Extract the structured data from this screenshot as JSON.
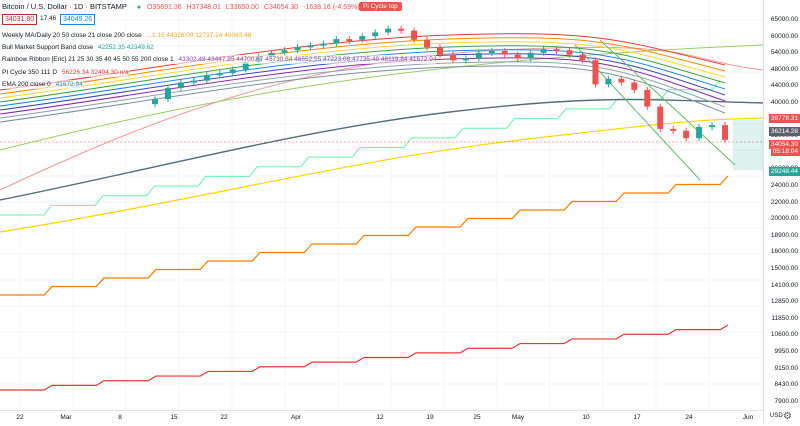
{
  "header": {
    "symbol": "Bitcoin / U.S. Dollar · 1D · BITSTAMP",
    "open": "O35691.36",
    "high": "H37348.01",
    "low": "L33650.00",
    "close": "C34054.30",
    "change": "-1638.16 (-4.59%)"
  },
  "price_boxes": {
    "bid": "34031.80",
    "spread": "17.46",
    "ask": "34049.26"
  },
  "pi_cycle_label": "Pi Cycle top",
  "indicators": [
    {
      "name": "Weekly MA/Daily 20 50 close 21 close 200 close",
      "values": "...1.15  44326.09  12737.24  40063.48"
    },
    {
      "name": "Bull Market Support Band close",
      "values": "42252.35  42349.62"
    },
    {
      "name": "Rainbow Ribbon [Eric] 21 25 30 35 40 45 50 55 200 close 1",
      "values": "43302.48  43447.85  44700.67  45730.64  46552.55  47223.08  47735.49  48119.84  41672.94"
    },
    {
      "name": "PI Cycle 350 111 D",
      "values": "56226.34  32404.30  n/a"
    },
    {
      "name": "EMA 200 close 0",
      "values": "41672.94"
    }
  ],
  "y_axis": {
    "labels": [
      "65000.00",
      "60000.00",
      "54000.00",
      "48000.00",
      "44000.00",
      "40000.00",
      "36000.00",
      "32000.00",
      "29000.00",
      "26000.00",
      "24000.00",
      "22000.00",
      "20000.00",
      "18900.00",
      "16000.00",
      "15000.00",
      "14100.00",
      "12850.00",
      "11850.00",
      "10600.00",
      "9950.00",
      "9150.00",
      "8430.00",
      "7900.00"
    ],
    "tags": [
      {
        "text": "38778.31",
        "color": "#ef5350"
      },
      {
        "text": "36214.28",
        "color": "#5d606b"
      },
      {
        "text": "34054.30",
        "color": "#ef5350"
      },
      {
        "text": "05:18:04",
        "color": "#ef5350"
      },
      {
        "text": "29248.44",
        "color": "#26a69a"
      }
    ],
    "currency": "USD"
  },
  "x_axis": {
    "labels": [
      "22",
      "Mar",
      "8",
      "15",
      "22",
      "Apr",
      "12",
      "19",
      "25",
      "May",
      "10",
      "17",
      "24",
      "Jun"
    ]
  },
  "colors": {
    "up": "#26a69a",
    "down": "#ef5350"
  },
  "chart_data": {
    "type": "line",
    "title": "Bitcoin / U.S. Dollar · 1D · BITSTAMP",
    "xlabel": "",
    "ylabel": "",
    "candles_close": [
      45000,
      48000,
      49500,
      50000,
      51500,
      52000,
      53000,
      55000,
      56500,
      57500,
      58200,
      59000,
      59500,
      60000,
      61200,
      61000,
      62000,
      63000,
      64000,
      63500,
      61000,
      59000,
      57000,
      55500,
      56000,
      57500,
      58000,
      57000,
      56000,
      57500,
      58500,
      58200,
      57000,
      55500,
      49000,
      50500,
      49500,
      47500,
      43000,
      37000,
      36500,
      34500,
      37500,
      38000,
      34054
    ],
    "series": [
      {
        "name": "Weekly MA",
        "values": []
      },
      {
        "name": "EMA 200",
        "values": []
      },
      {
        "name": "PI Cycle",
        "values": []
      }
    ]
  }
}
